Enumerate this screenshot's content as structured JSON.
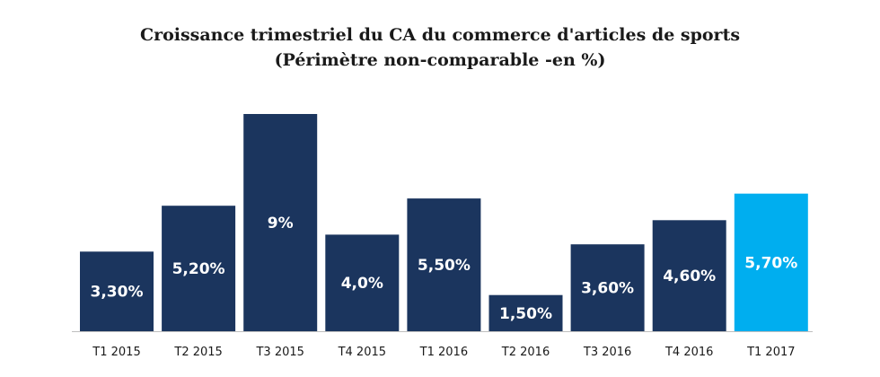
{
  "chart_data": {
    "type": "bar",
    "title": "Croissance trimestriel du CA du commerce d'articles de sports",
    "subtitle": "(Périmètre non-comparable -en %)",
    "categories": [
      "T1 2015",
      "T2 2015",
      "T3 2015",
      "T4 2015",
      "T1 2016",
      "T2 2016",
      "T3 2016",
      "T4 2016",
      "T1 2017"
    ],
    "values": [
      3.3,
      5.2,
      9,
      4.0,
      5.5,
      1.5,
      3.6,
      4.6,
      5.7
    ],
    "data_labels": [
      "3,30%",
      "5,20%",
      "9%",
      "4,0%",
      "5,50%",
      "1,50%",
      "3,60%",
      "4,60%",
      "5,70%"
    ],
    "ylim": [
      0,
      9
    ],
    "grid": false,
    "legend": "none",
    "colors": {
      "bar": "#1b355e",
      "highlight_bar": "#00aeef",
      "highlight_index": 8,
      "baseline": "#bfbfbf"
    }
  }
}
